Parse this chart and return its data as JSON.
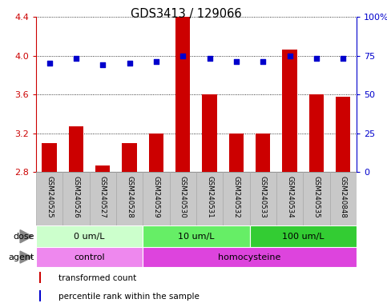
{
  "title": "GDS3413 / 129066",
  "samples": [
    "GSM240525",
    "GSM240526",
    "GSM240527",
    "GSM240528",
    "GSM240529",
    "GSM240530",
    "GSM240531",
    "GSM240532",
    "GSM240533",
    "GSM240534",
    "GSM240535",
    "GSM240848"
  ],
  "bar_values": [
    3.1,
    3.27,
    2.87,
    3.1,
    3.2,
    4.4,
    3.6,
    3.2,
    3.2,
    4.06,
    3.6,
    3.58
  ],
  "dot_percentiles": [
    70,
    73,
    69,
    70,
    71,
    75,
    73,
    71,
    71,
    75,
    73,
    73
  ],
  "ylim": [
    2.8,
    4.4
  ],
  "y2lim": [
    0,
    100
  ],
  "yticks": [
    2.8,
    3.2,
    3.6,
    4.0,
    4.4
  ],
  "ytick_labels": [
    "2.8",
    "3.2",
    "3.6",
    "4.0",
    "4.4"
  ],
  "y2ticks": [
    0,
    25,
    50,
    75,
    100
  ],
  "y2tick_labels": [
    "0",
    "25",
    "50",
    "75",
    "100%"
  ],
  "bar_color": "#CC0000",
  "dot_color": "#0000CC",
  "dose_groups": [
    {
      "label": "0 um/L",
      "start": 0,
      "end": 4,
      "color": "#CCFFCC"
    },
    {
      "label": "10 um/L",
      "start": 4,
      "end": 8,
      "color": "#66EE66"
    },
    {
      "label": "100 um/L",
      "start": 8,
      "end": 12,
      "color": "#33CC33"
    }
  ],
  "agent_groups": [
    {
      "label": "control",
      "start": 0,
      "end": 4,
      "color": "#EE88EE"
    },
    {
      "label": "homocysteine",
      "start": 4,
      "end": 12,
      "color": "#DD44DD"
    }
  ],
  "dose_label": "dose",
  "agent_label": "agent",
  "legend_bar": "transformed count",
  "legend_dot": "percentile rank within the sample",
  "bg_color": "#FFFFFF",
  "tick_area_color": "#C8C8C8",
  "cell_border_color": "#AAAAAA"
}
